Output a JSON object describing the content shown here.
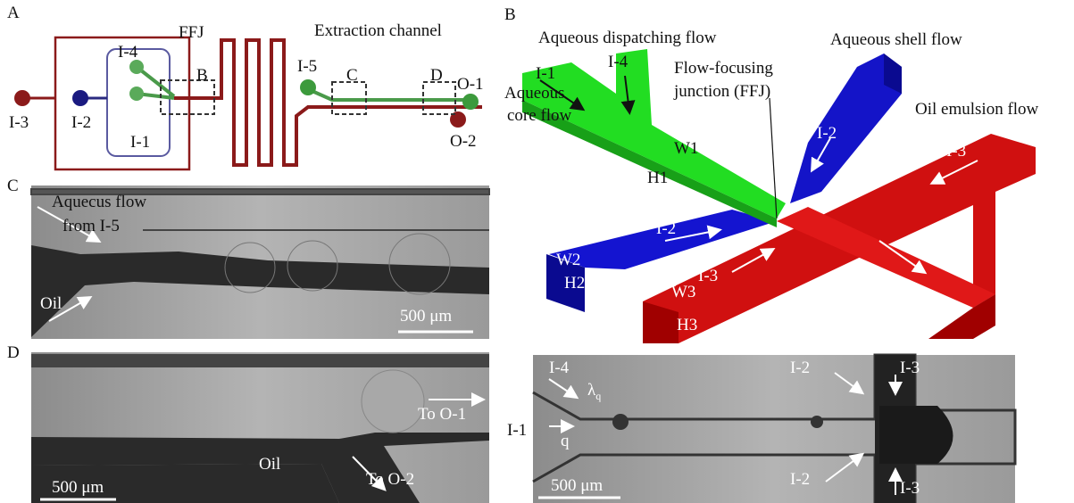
{
  "panel_a": {
    "label": "A",
    "ffj": "FFJ",
    "extraction_channel": "Extraction channel",
    "inlets": [
      "I-1",
      "I-2",
      "I-3",
      "I-4",
      "I-5"
    ],
    "boxes": [
      "B",
      "C",
      "D"
    ],
    "outlets": [
      "O-1",
      "O-2"
    ]
  },
  "panel_b": {
    "label": "B",
    "aqueous_dispatching_flow": "Aqueous dispatching flow",
    "aqueous_shell_flow": "Aqueous shell flow",
    "aqueous_core_flow": [
      "Aqueous",
      "core flow"
    ],
    "ffj": [
      "Flow-focusing",
      "junction (FFJ)"
    ],
    "oil_emulsion_flow": "Oil emulsion flow",
    "inlets": [
      "I-1",
      "I-4",
      "I-2",
      "I-2",
      "I-3",
      "I-3"
    ],
    "dimensions": [
      "W1",
      "H1",
      "W2",
      "H2",
      "W3",
      "H3"
    ]
  },
  "panel_b_image": {
    "inlets": [
      "I-4",
      "I-1",
      "I-2",
      "I-2",
      "I-3",
      "I-3"
    ],
    "wavelength": {
      "symbol": "λ",
      "subscript": "q"
    },
    "frequency": "q",
    "scale_bar": "500 μm"
  },
  "panel_c": {
    "label": "C",
    "aqueous_flow": [
      "Aquecus flow",
      "from I-5"
    ],
    "oil": "Oil",
    "scale_bar": "500 μm"
  },
  "panel_d": {
    "label": "D",
    "to_o1": "To O-1",
    "oil": "Oil",
    "to_o2": "To O-2",
    "scale_bar": "500 μm"
  }
}
